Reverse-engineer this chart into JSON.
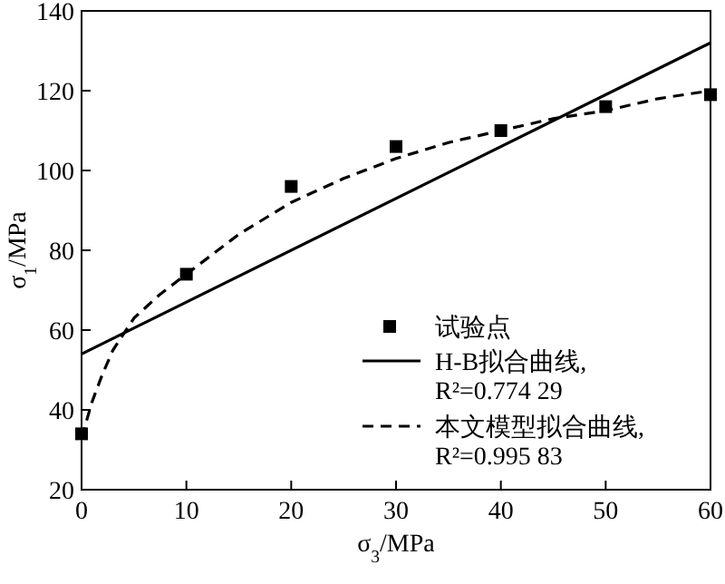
{
  "chart_data": {
    "type": "line",
    "xlabel": "σ$_{3}$/MPa",
    "ylabel": "σ$_{1}$/MPa",
    "xlim": [
      0,
      60
    ],
    "ylim": [
      20,
      140
    ],
    "xticks": [
      0,
      10,
      20,
      30,
      40,
      50,
      60
    ],
    "yticks": [
      20,
      40,
      60,
      80,
      100,
      120,
      140
    ],
    "legend": "bottom right",
    "series": [
      {
        "name": "试验点",
        "type": "scatter",
        "marker": "square",
        "color": "#000000",
        "x": [
          0,
          10,
          20,
          30,
          40,
          50,
          60
        ],
        "values": [
          34,
          74,
          96,
          106,
          110,
          116,
          119
        ]
      },
      {
        "name": "H-B拟合曲线,\nR²=0.774 29",
        "type": "line",
        "line_style": "solid",
        "color": "#000000",
        "x": [
          0,
          60
        ],
        "values": [
          54,
          132
        ]
      },
      {
        "name": "本文模型拟合曲线,\nR²=0.995 83",
        "type": "line",
        "line_style": "dashed",
        "color": "#000000",
        "x": [
          0,
          1,
          2,
          3,
          4,
          5,
          7.5,
          10,
          15,
          20,
          25,
          30,
          35,
          40,
          45,
          50,
          55,
          60
        ],
        "values": [
          33,
          42,
          49,
          55,
          59,
          63,
          69,
          74,
          84,
          92,
          98,
          103,
          107,
          110,
          113,
          115,
          118,
          120
        ]
      }
    ]
  }
}
